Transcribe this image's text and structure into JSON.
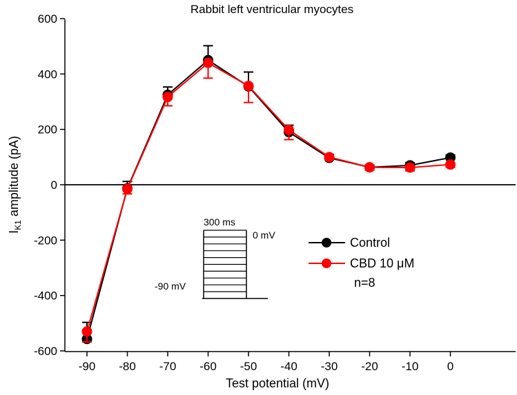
{
  "chart_data": {
    "type": "line",
    "title": "Rabbit left ventricular myocytes",
    "xlabel": "Test potential (mV)",
    "ylabel": {
      "main": "I",
      "subscript": "K1",
      "rest": " amplitude (pA)"
    },
    "x": [
      -90,
      -80,
      -70,
      -60,
      -50,
      -40,
      -30,
      -20,
      -10,
      0
    ],
    "x_tick_labels": [
      "-90",
      "-80",
      "-70",
      "-60",
      "-50",
      "-40",
      "-30",
      "-20",
      "-10",
      "0"
    ],
    "xlim": [
      -95,
      3
    ],
    "ylim": [
      -600,
      600
    ],
    "y_ticks": [
      -600,
      -400,
      -200,
      0,
      200,
      400,
      600
    ],
    "y_tick_labels": [
      "-600",
      "-400",
      "-200",
      "0",
      "200",
      "400",
      "600"
    ],
    "grid": false,
    "zero_line": true,
    "legend_position": "center-right",
    "series": [
      {
        "name": "Control",
        "color": "#000000",
        "values": [
          -557,
          -13,
          325,
          450,
          355,
          190,
          97,
          63,
          70,
          98
        ],
        "error": [
          60,
          25,
          28,
          52,
          52,
          25,
          12,
          8,
          10,
          10
        ],
        "error_direction": "up"
      },
      {
        "name": "CBD 10 μM",
        "color": "#ff0000",
        "values": [
          -530,
          -15,
          317,
          440,
          357,
          198,
          100,
          63,
          62,
          73
        ],
        "error": [
          38,
          18,
          32,
          55,
          60,
          35,
          8,
          10,
          12,
          10
        ],
        "error_direction": "down"
      }
    ],
    "annotations": {
      "n_label": "n=8",
      "protocol_inset": {
        "duration_label": "300 ms",
        "top_voltage_label": "0 mV",
        "holding_voltage_label": "-90 mV",
        "steps": 10
      }
    }
  }
}
